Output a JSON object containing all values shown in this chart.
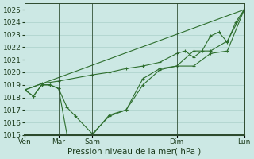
{
  "background_color": "#cce8e4",
  "grid_color": "#aad0ca",
  "line_color": "#2d6e2d",
  "xlabel": "Pression niveau de la mer( hPa )",
  "ylim": [
    1015,
    1025.5
  ],
  "yticks": [
    1015,
    1016,
    1017,
    1018,
    1019,
    1020,
    1021,
    1022,
    1023,
    1024,
    1025
  ],
  "xtick_labels": [
    "Ven",
    "Mar",
    "Sam",
    "Dim",
    "Lun"
  ],
  "xtick_positions": [
    0,
    2,
    4,
    9,
    13
  ],
  "xlim": [
    0,
    13
  ],
  "series": [
    {
      "x": [
        0,
        0.5,
        1.0,
        1.5,
        2.0,
        2.5,
        4.0,
        5.0,
        6.0,
        7.0,
        8.0,
        9.0,
        10.0,
        11.0,
        12.0,
        13.0
      ],
      "y": [
        1018.6,
        1018.1,
        1019.0,
        1019.0,
        1018.7,
        1015.0,
        1015.0,
        1016.6,
        1017.0,
        1019.0,
        1020.2,
        1020.5,
        1020.5,
        1021.5,
        1021.7,
        1025.0
      ]
    },
    {
      "x": [
        0,
        0.5,
        1.0,
        1.5,
        2.0,
        2.5,
        3.0,
        4.0,
        5.0,
        6.0,
        7.0,
        8.0,
        9.0,
        10.0,
        11.0,
        12.0,
        13.0
      ],
      "y": [
        1018.6,
        1018.1,
        1019.0,
        1019.0,
        1018.7,
        1017.2,
        1016.5,
        1015.1,
        1016.5,
        1017.0,
        1019.5,
        1020.3,
        1020.5,
        1021.7,
        1021.7,
        1022.5,
        1025.0
      ]
    },
    {
      "x": [
        0,
        13.0
      ],
      "y": [
        1018.6,
        1025.0
      ]
    },
    {
      "x": [
        0,
        1.0,
        2.0,
        4.0,
        5.0,
        6.0,
        7.0,
        8.0,
        9.0,
        9.5,
        10.0,
        10.5,
        11.0,
        11.5,
        12.0,
        12.5,
        13.0
      ],
      "y": [
        1018.6,
        1019.1,
        1019.3,
        1019.8,
        1020.0,
        1020.3,
        1020.5,
        1020.8,
        1021.5,
        1021.7,
        1021.2,
        1021.7,
        1022.9,
        1023.2,
        1022.4,
        1024.0,
        1025.0
      ]
    }
  ],
  "fontsize_label": 7.5,
  "fontsize_tick": 6.5
}
